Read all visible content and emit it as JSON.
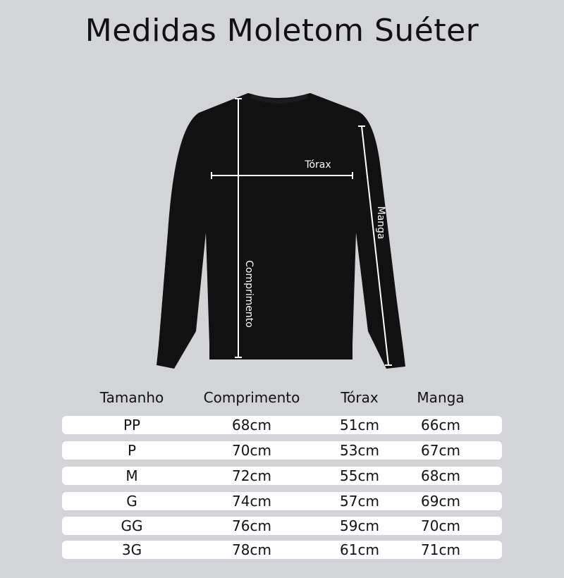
{
  "title": "Medidas Moletom Suéter",
  "diagram": {
    "labels": {
      "chest": "Tórax",
      "sleeve": "Manga",
      "length": "Comprimento"
    },
    "garment_color": "#111111",
    "line_color": "#ffffff"
  },
  "table": {
    "headers": [
      "Tamanho",
      "Comprimento",
      "Tórax",
      "Manga"
    ],
    "rows": [
      [
        "PP",
        "68cm",
        "51cm",
        "66cm"
      ],
      [
        "P",
        "70cm",
        "53cm",
        "67cm"
      ],
      [
        "M",
        "72cm",
        "55cm",
        "68cm"
      ],
      [
        "G",
        "74cm",
        "57cm",
        "69cm"
      ],
      [
        "GG",
        "76cm",
        "59cm",
        "70cm"
      ],
      [
        "3G",
        "78cm",
        "61cm",
        "71cm"
      ]
    ]
  }
}
